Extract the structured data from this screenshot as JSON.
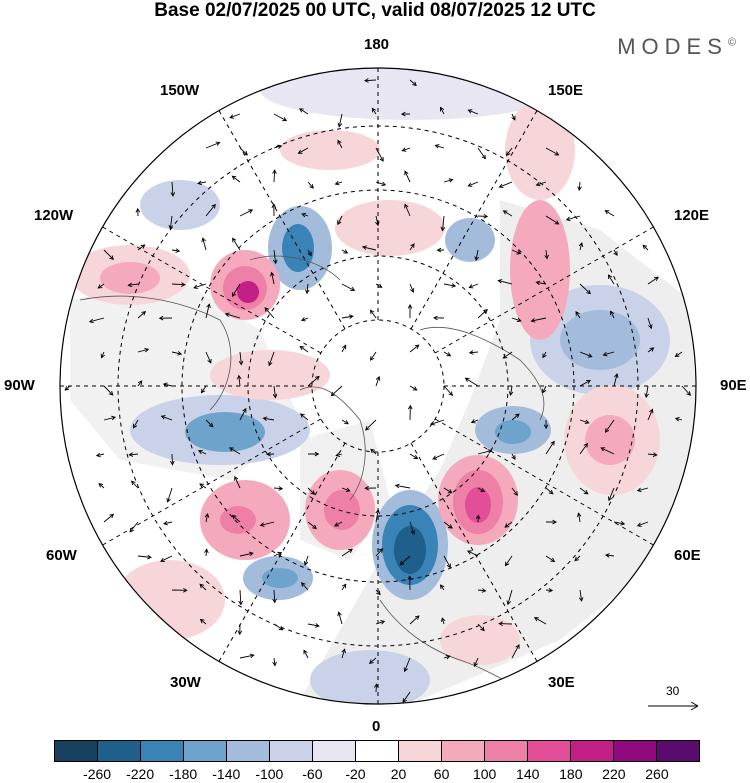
{
  "title": "Base 02/07/2025 00 UTC, valid 08/07/2025 12 UTC",
  "brand": "MODES",
  "brand_mark": "©",
  "longitude_labels": {
    "lon_180": "180",
    "lon_150e": "150E",
    "lon_120e": "120E",
    "lon_90e": "90E",
    "lon_60e": "60E",
    "lon_30e": "30E",
    "lon_0": "0",
    "lon_30w": "30W",
    "lon_60w": "60W",
    "lon_90w": "90W",
    "lon_120w": "120W",
    "lon_150w": "150W"
  },
  "colorbar": {
    "colors": [
      "#17405e",
      "#1f5f8b",
      "#3a83b6",
      "#6ea3cc",
      "#a3bcdc",
      "#c9d2e8",
      "#e8e6f2",
      "#ffffff",
      "#f7d6d9",
      "#f4aabc",
      "#ee7fa7",
      "#e24f98",
      "#c41f86",
      "#8e0a7e",
      "#5a0c6e"
    ],
    "labels": [
      "-260",
      "-220",
      "-180",
      "-140",
      "-100",
      "-60",
      "-20",
      "20",
      "60",
      "100",
      "140",
      "180",
      "220",
      "260"
    ]
  },
  "vector_scale": "30",
  "anomaly_centres": [
    {
      "sign": "negative",
      "level": -180,
      "color": "#3a83b6"
    },
    {
      "sign": "negative",
      "level": -140,
      "color": "#6ea3cc"
    },
    {
      "sign": "negative",
      "level": -100,
      "color": "#a3bcdc"
    },
    {
      "sign": "negative",
      "level": -60,
      "color": "#c9d2e8"
    },
    {
      "sign": "positive",
      "level": 180,
      "color": "#e24f98"
    },
    {
      "sign": "positive",
      "level": 140,
      "color": "#ee7fa7"
    },
    {
      "sign": "positive",
      "level": 100,
      "color": "#f4aabc"
    },
    {
      "sign": "positive",
      "level": 60,
      "color": "#f7d6d9"
    }
  ]
}
